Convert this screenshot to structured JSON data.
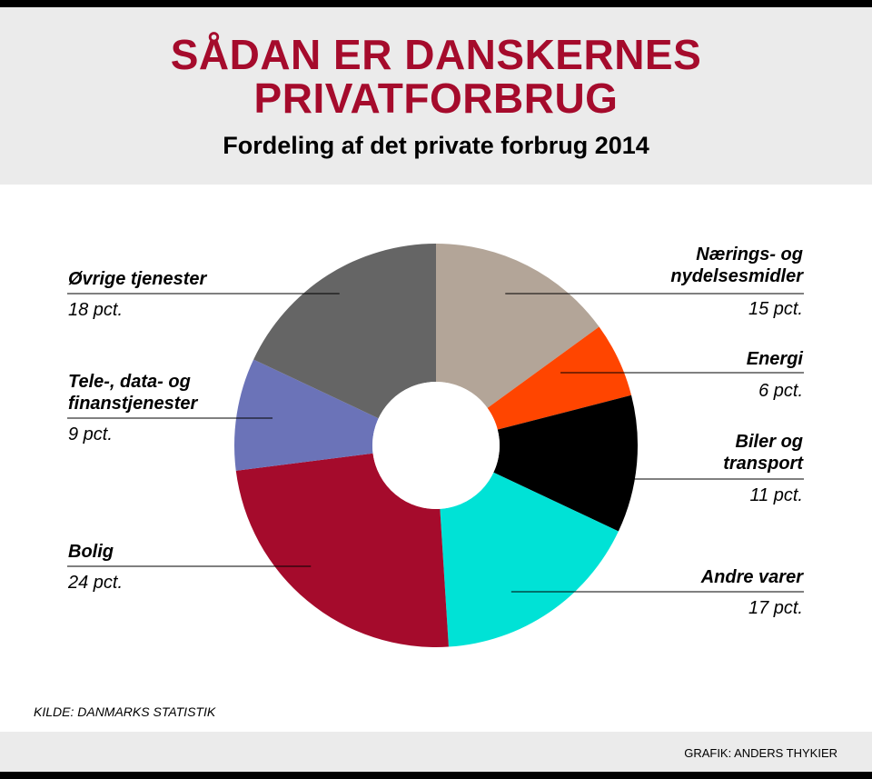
{
  "header": {
    "title_line1": "SÅDAN ER DANSKERNES",
    "title_line2": "PRIVATFORBRUG",
    "subtitle": "Fordeling af det private forbrug 2014"
  },
  "source": "KILDE:  DANMARKS STATISTIK",
  "credit": "GRAFIK: ANDERS THYKIER",
  "colors": {
    "title": "#a50b2c",
    "band": "#ebebeb"
  },
  "chart_data": {
    "type": "pie",
    "donut": true,
    "title": "SÅDAN ER DANSKERNES PRIVATFORBRUG",
    "subtitle": "Fordeling af det private forbrug 2014",
    "unit": "pct.",
    "slices": [
      {
        "name": "Nærings- og nydelsesmidler",
        "lines": [
          "Nærings- og",
          "nydelsesmidler"
        ],
        "value": 15,
        "value_label": "15 pct.",
        "color": "#b3a598",
        "side": "right"
      },
      {
        "name": "Energi",
        "lines": [
          "Energi"
        ],
        "value": 6,
        "value_label": "6 pct.",
        "color": "#ff4500",
        "side": "right"
      },
      {
        "name": "Biler og transport",
        "lines": [
          "Biler og",
          "transport"
        ],
        "value": 11,
        "value_label": "11 pct.",
        "color": "#000000",
        "side": "right"
      },
      {
        "name": "Andre varer",
        "lines": [
          "Andre varer"
        ],
        "value": 17,
        "value_label": "17 pct.",
        "color": "#00e2d6",
        "side": "right"
      },
      {
        "name": "Bolig",
        "lines": [
          "Bolig"
        ],
        "value": 24,
        "value_label": "24 pct.",
        "color": "#a50b2c",
        "side": "left"
      },
      {
        "name": "Tele-, data- og finanstjenester",
        "lines": [
          "Tele-, data- og",
          "finanstjenester"
        ],
        "value": 9,
        "value_label": "9 pct.",
        "color": "#6b73b8",
        "side": "left"
      },
      {
        "name": "Øvrige tjenester",
        "lines": [
          "Øvrige tjenester"
        ],
        "value": 18,
        "value_label": "18 pct.",
        "color": "#656565",
        "side": "left"
      }
    ]
  }
}
